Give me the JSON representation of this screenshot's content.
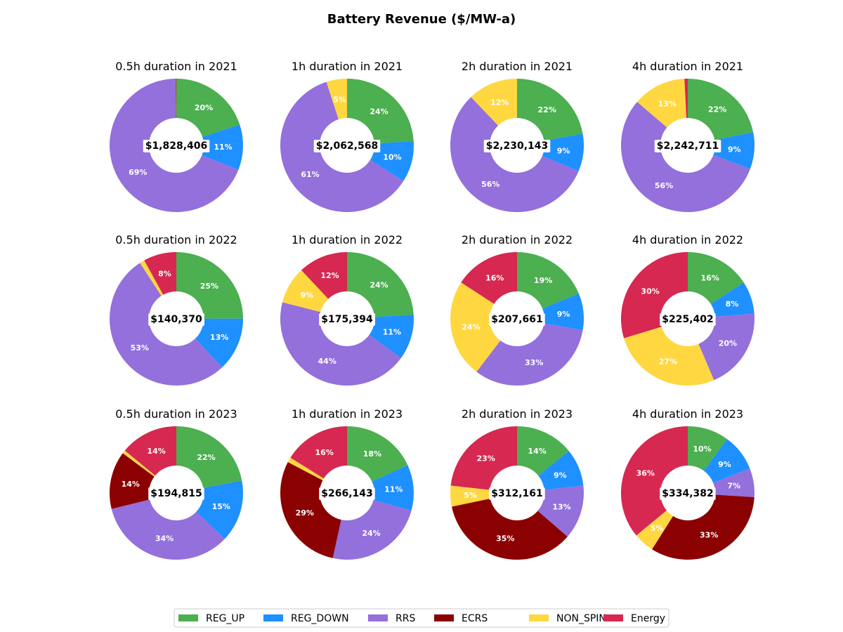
{
  "page_title": "Battery Revenue ($/MW-a)",
  "legend_labels": [
    "REG_UP",
    "REG_DOWN",
    "RRS",
    "ECRS",
    "NON_SPIN",
    "Energy"
  ],
  "colors": {
    "REG_UP": "#4caf50",
    "REG_DOWN": "#1e90ff",
    "RRS": "#9370db",
    "ECRS": "#8b0000",
    "NON_SPIN": "#ffd740",
    "Energy": "#d62850"
  },
  "chart_data": [
    {
      "type": "pie",
      "title": "0.5h duration in 2021",
      "total": "$1,828,406",
      "values": {
        "REG_UP": 20,
        "REG_DOWN": 11,
        "RRS": 69,
        "ECRS": 0,
        "NON_SPIN": 0,
        "Energy": 0.2
      },
      "labels": {
        "REG_UP": "20%",
        "REG_DOWN": "11%",
        "RRS": "69%"
      }
    },
    {
      "type": "pie",
      "title": "1h duration in 2021",
      "total": "$2,062,568",
      "values": {
        "REG_UP": 24,
        "REG_DOWN": 10,
        "RRS": 61,
        "ECRS": 0,
        "NON_SPIN": 5,
        "Energy": 0
      },
      "labels": {
        "REG_UP": "24%",
        "REG_DOWN": "10%",
        "RRS": "61%",
        "NON_SPIN": "5%"
      }
    },
    {
      "type": "pie",
      "title": "2h duration in 2021",
      "total": "$2,230,143",
      "values": {
        "REG_UP": 22,
        "REG_DOWN": 9,
        "RRS": 56,
        "ECRS": 0,
        "NON_SPIN": 12,
        "Energy": 0
      },
      "labels": {
        "REG_UP": "22%",
        "REG_DOWN": "9%",
        "RRS": "56%",
        "NON_SPIN": "12%"
      }
    },
    {
      "type": "pie",
      "title": "4h duration in 2021",
      "total": "$2,242,711",
      "values": {
        "REG_UP": 22,
        "REG_DOWN": 9,
        "RRS": 56,
        "ECRS": 0,
        "NON_SPIN": 13,
        "Energy": 0.8
      },
      "labels": {
        "REG_UP": "22%",
        "REG_DOWN": "9%",
        "RRS": "56%",
        "NON_SPIN": "13%"
      }
    },
    {
      "type": "pie",
      "title": "0.5h duration in 2022",
      "total": "$140,370",
      "values": {
        "REG_UP": 25,
        "REG_DOWN": 13,
        "RRS": 53,
        "ECRS": 0,
        "NON_SPIN": 1.2,
        "Energy": 8
      },
      "labels": {
        "REG_UP": "25%",
        "REG_DOWN": "13%",
        "RRS": "53%",
        "Energy": "8%"
      }
    },
    {
      "type": "pie",
      "title": "1h duration in 2022",
      "total": "$175,394",
      "values": {
        "REG_UP": 24,
        "REG_DOWN": 11,
        "RRS": 44,
        "ECRS": 0,
        "NON_SPIN": 9,
        "Energy": 12
      },
      "labels": {
        "REG_UP": "24%",
        "REG_DOWN": "11%",
        "RRS": "44%",
        "NON_SPIN": "9%",
        "Energy": "12%"
      }
    },
    {
      "type": "pie",
      "title": "2h duration in 2022",
      "total": "$207,661",
      "values": {
        "REG_UP": 19,
        "REG_DOWN": 9,
        "RRS": 33,
        "ECRS": 0,
        "NON_SPIN": 24,
        "Energy": 16
      },
      "labels": {
        "REG_UP": "19%",
        "REG_DOWN": "9%",
        "RRS": "33%",
        "NON_SPIN": "24%",
        "Energy": "16%"
      }
    },
    {
      "type": "pie",
      "title": "4h duration in 2022",
      "total": "$225,402",
      "values": {
        "REG_UP": 16,
        "REG_DOWN": 8,
        "RRS": 20,
        "ECRS": 0,
        "NON_SPIN": 27,
        "Energy": 30
      },
      "labels": {
        "REG_UP": "16%",
        "REG_DOWN": "8%",
        "RRS": "20%",
        "NON_SPIN": "27%",
        "Energy": "30%"
      }
    },
    {
      "type": "pie",
      "title": "0.5h duration in 2023",
      "total": "$194,815",
      "values": {
        "REG_UP": 22,
        "REG_DOWN": 15,
        "RRS": 34,
        "ECRS": 14,
        "NON_SPIN": 0.8,
        "Energy": 14
      },
      "labels": {
        "REG_UP": "22%",
        "REG_DOWN": "15%",
        "RRS": "34%",
        "ECRS": "14%",
        "Energy": "14%"
      }
    },
    {
      "type": "pie",
      "title": "1h duration in 2023",
      "total": "$266,143",
      "values": {
        "REG_UP": 18,
        "REG_DOWN": 11,
        "RRS": 24,
        "ECRS": 29,
        "NON_SPIN": 1.2,
        "Energy": 16
      },
      "labels": {
        "REG_UP": "18%",
        "REG_DOWN": "11%",
        "RRS": "24%",
        "ECRS": "29%",
        "Energy": "16%"
      }
    },
    {
      "type": "pie",
      "title": "2h duration in 2023",
      "total": "$312,161",
      "values": {
        "REG_UP": 14,
        "REG_DOWN": 9,
        "RRS": 13,
        "ECRS": 35,
        "NON_SPIN": 5,
        "Energy": 23
      },
      "labels": {
        "REG_UP": "14%",
        "REG_DOWN": "9%",
        "RRS": "13%",
        "ECRS": "35%",
        "NON_SPIN": "5%",
        "Energy": "23%"
      }
    },
    {
      "type": "pie",
      "title": "4h duration in 2023",
      "total": "$334,382",
      "values": {
        "REG_UP": 10,
        "REG_DOWN": 9,
        "RRS": 7,
        "ECRS": 33,
        "NON_SPIN": 5,
        "Energy": 36
      },
      "labels": {
        "REG_UP": "10%",
        "REG_DOWN": "9%",
        "RRS": "7%",
        "ECRS": "33%",
        "NON_SPIN": "5%",
        "Energy": "36%"
      }
    }
  ]
}
